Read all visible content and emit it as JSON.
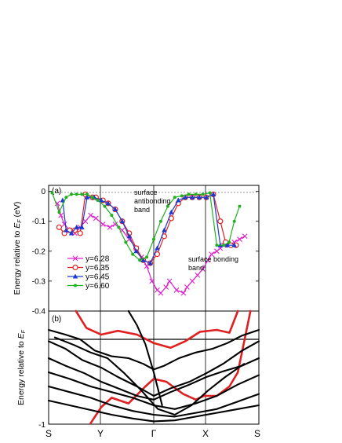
{
  "chart_data": [
    {
      "panel": "(a)",
      "type": "line",
      "ylabel_prefix": "Energy relative to ",
      "ylabel_symbol": "E",
      "ylabel_sub": "F",
      "ylabel_unit": " (eV)",
      "ylim": [
        -0.4,
        0.02
      ],
      "yticks": [
        0,
        -0.1,
        -0.2,
        -0.3,
        -0.4
      ],
      "ytick_labels": [
        "0",
        "-0.1",
        "-0.2",
        "-0.3",
        "-0.4"
      ],
      "kpoints": [
        "Y",
        "Γ",
        "X"
      ],
      "annotations": [
        {
          "lines": [
            "surface",
            "antibonding",
            "band"
          ],
          "anchor": "top-center"
        },
        {
          "lines": [
            "surface bonding",
            "band"
          ],
          "anchor": "right"
        }
      ],
      "legend_position": "lower-left",
      "series": [
        {
          "name": "y=6.28",
          "color": "#e020d0",
          "marker": "x",
          "x": [
            0.05,
            0.07,
            0.09,
            0.12,
            0.15,
            0.18,
            0.21,
            0.24,
            0.27,
            0.31,
            0.35,
            0.38,
            0.42,
            0.46,
            0.5,
            0.53,
            0.56,
            0.59,
            0.62,
            0.64,
            0.67,
            0.69,
            0.73,
            0.77,
            0.79,
            0.82,
            0.85,
            0.88,
            0.91,
            0.93,
            0.96,
            0.98,
            1.0,
            1.03,
            1.06,
            1.09,
            1.12
          ],
          "y": [
            -0.04,
            -0.08,
            -0.11,
            -0.13,
            -0.14,
            -0.12,
            -0.1,
            -0.08,
            -0.09,
            -0.11,
            -0.12,
            -0.11,
            -0.13,
            -0.16,
            -0.19,
            -0.22,
            -0.25,
            -0.3,
            -0.33,
            -0.34,
            -0.32,
            -0.3,
            -0.33,
            -0.34,
            -0.32,
            -0.3,
            -0.28,
            -0.26,
            -0.23,
            -0.21,
            -0.2,
            -0.19,
            -0.18,
            -0.18,
            -0.17,
            -0.16,
            -0.15
          ]
        },
        {
          "name": "y=6.35",
          "color": "#e02020",
          "marker": "o",
          "x": [
            0.06,
            0.09,
            0.12,
            0.15,
            0.18,
            0.21,
            0.25,
            0.27,
            0.31,
            0.34,
            0.38,
            0.42,
            0.46,
            0.5,
            0.54,
            0.58,
            0.62,
            0.66,
            0.7,
            0.74,
            0.78,
            0.82,
            0.86,
            0.9,
            0.94,
            0.98,
            1.01,
            1.04,
            1.07
          ],
          "y": [
            -0.12,
            -0.14,
            -0.13,
            -0.13,
            -0.14,
            -0.01,
            -0.02,
            -0.02,
            -0.03,
            -0.04,
            -0.06,
            -0.1,
            -0.14,
            -0.19,
            -0.23,
            -0.24,
            -0.21,
            -0.15,
            -0.09,
            -0.04,
            -0.02,
            -0.02,
            -0.02,
            -0.02,
            -0.01,
            -0.1,
            -0.17,
            -0.18,
            -0.18
          ]
        },
        {
          "name": "y=6.45",
          "color": "#1a3ad0",
          "marker": "triangle",
          "x": [
            0.08,
            0.1,
            0.13,
            0.16,
            0.19,
            0.22,
            0.26,
            0.3,
            0.34,
            0.38,
            0.42,
            0.46,
            0.5,
            0.54,
            0.58,
            0.62,
            0.66,
            0.7,
            0.74,
            0.78,
            0.82,
            0.86,
            0.9,
            0.94,
            0.98,
            1.02,
            1.06
          ],
          "y": [
            -0.03,
            -0.13,
            -0.14,
            -0.12,
            -0.12,
            -0.02,
            -0.02,
            -0.03,
            -0.04,
            -0.06,
            -0.1,
            -0.15,
            -0.2,
            -0.23,
            -0.24,
            -0.19,
            -0.13,
            -0.07,
            -0.03,
            -0.02,
            -0.02,
            -0.02,
            -0.02,
            -0.01,
            -0.18,
            -0.18,
            -0.18
          ]
        },
        {
          "name": "y=6.60",
          "color": "#22b020",
          "marker": "dot",
          "x": [
            0.02,
            0.06,
            0.1,
            0.13,
            0.16,
            0.19,
            0.22,
            0.25,
            0.28,
            0.32,
            0.36,
            0.4,
            0.44,
            0.48,
            0.52,
            0.56,
            0.6,
            0.64,
            0.68,
            0.72,
            0.76,
            0.8,
            0.84,
            0.88,
            0.92,
            0.96,
            1.0,
            1.03,
            1.06,
            1.09
          ],
          "y": [
            -0.005,
            -0.07,
            -0.02,
            -0.01,
            -0.01,
            -0.01,
            -0.01,
            -0.02,
            -0.03,
            -0.05,
            -0.08,
            -0.12,
            -0.17,
            -0.21,
            -0.23,
            -0.22,
            -0.16,
            -0.1,
            -0.05,
            -0.02,
            -0.015,
            -0.01,
            -0.01,
            -0.01,
            -0.005,
            -0.18,
            -0.18,
            -0.17,
            -0.1,
            -0.05
          ]
        }
      ]
    },
    {
      "panel": "(b)",
      "type": "line",
      "ylabel_prefix": "Energy relative to ",
      "ylabel_symbol": "E",
      "ylabel_sub": "F",
      "ylabel_unit": "",
      "ylim": [
        -1,
        0.2
      ],
      "ytick_labels": [
        "-1"
      ],
      "kpoints": [
        "S",
        "Y",
        "Γ",
        "X",
        "S"
      ],
      "series": [
        {
          "color": "#e02020",
          "x": [
            0.13,
            0.18,
            0.25,
            0.33,
            0.42,
            0.5,
            0.58,
            0.65,
            0.72,
            0.8,
            0.86,
            0.9
          ],
          "y": [
            0.2,
            0.02,
            -0.05,
            -0.01,
            -0.05,
            -0.14,
            -0.19,
            -0.12,
            -0.02,
            0,
            -0.03,
            0.2
          ]
        },
        {
          "color": "#e02020",
          "x": [
            0.2,
            0.25,
            0.3,
            0.38,
            0.46,
            0.5,
            0.56,
            0.64,
            0.7,
            0.74,
            0.8,
            0.86,
            0.9,
            0.96
          ],
          "y": [
            -0.99,
            -0.82,
            -0.72,
            -0.78,
            -0.6,
            -0.52,
            -0.55,
            -0.68,
            -0.74,
            -0.7,
            -0.7,
            -0.6,
            -0.45,
            0.2
          ]
        },
        {
          "color": "#000000",
          "x": [
            0,
            0.08,
            0.15,
            0.22,
            0.3,
            0.38,
            0.45,
            0.5,
            0.55,
            0.62,
            0.7,
            0.78,
            0.85,
            0.92,
            1
          ],
          "y": [
            0,
            -0.05,
            -0.1,
            -0.22,
            -0.28,
            -0.3,
            -0.36,
            -0.42,
            -0.38,
            -0.3,
            -0.24,
            -0.2,
            -0.14,
            -0.06,
            0
          ]
        },
        {
          "color": "#000000",
          "x": [
            0,
            0.08,
            0.16,
            0.25,
            0.33,
            0.42,
            0.5,
            0.58,
            0.67,
            0.75,
            0.83,
            0.92,
            1
          ],
          "y": [
            -0.12,
            -0.2,
            -0.32,
            -0.4,
            -0.5,
            -0.6,
            -0.7,
            -0.62,
            -0.55,
            -0.46,
            -0.36,
            -0.22,
            -0.12
          ]
        },
        {
          "color": "#000000",
          "x": [
            0,
            0.08,
            0.17,
            0.25,
            0.33,
            0.42,
            0.5,
            0.58,
            0.67,
            0.75,
            0.83,
            0.92,
            1
          ],
          "y": [
            -0.3,
            -0.38,
            -0.46,
            -0.55,
            -0.62,
            -0.7,
            -0.74,
            -0.66,
            -0.58,
            -0.5,
            -0.44,
            -0.38,
            -0.3
          ]
        },
        {
          "color": "#000000",
          "x": [
            0,
            0.1,
            0.2,
            0.3,
            0.4,
            0.5,
            0.6,
            0.7,
            0.8,
            0.9,
            1
          ],
          "y": [
            -0.45,
            -0.52,
            -0.6,
            -0.66,
            -0.72,
            -0.8,
            -0.84,
            -0.78,
            -0.7,
            -0.58,
            -0.48
          ]
        },
        {
          "color": "#000000",
          "x": [
            0,
            0.1,
            0.2,
            0.3,
            0.4,
            0.5,
            0.6,
            0.7,
            0.8,
            0.9,
            1
          ],
          "y": [
            -0.6,
            -0.66,
            -0.72,
            -0.8,
            -0.86,
            -0.9,
            -0.92,
            -0.88,
            -0.84,
            -0.76,
            -0.68
          ]
        },
        {
          "color": "#000000",
          "x": [
            0,
            0.1,
            0.2,
            0.3,
            0.4,
            0.5,
            0.6,
            0.7,
            0.8,
            0.9,
            1
          ],
          "y": [
            -0.75,
            -0.8,
            -0.85,
            -0.9,
            -0.94,
            -0.97,
            -0.96,
            -0.92,
            -0.88,
            -0.84,
            -0.8
          ]
        },
        {
          "color": "#000000",
          "x": [
            0.03,
            0.12,
            0.2,
            0.28,
            0.36,
            0.44,
            0.52,
            0.6,
            0.68,
            0.76,
            0.84,
            0.93
          ],
          "y": [
            -0.08,
            -0.16,
            -0.24,
            -0.3,
            -0.46,
            -0.64,
            -0.84,
            -0.9,
            -0.8,
            -0.64,
            -0.5,
            -0.36
          ]
        },
        {
          "color": "#000000",
          "x": [
            0.38,
            0.42,
            0.46,
            0.5,
            0.54
          ],
          "y": [
            0.2,
            0.05,
            -0.15,
            -0.45,
            -0.8
          ]
        }
      ]
    }
  ]
}
